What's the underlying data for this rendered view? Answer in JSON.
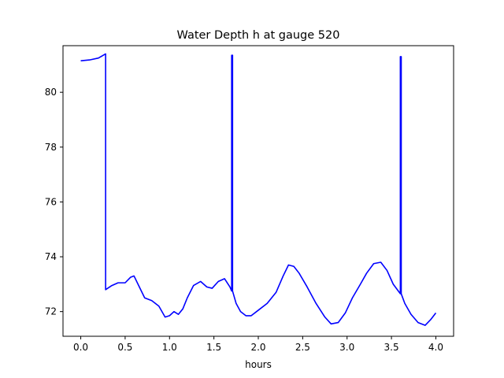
{
  "chart_data": {
    "type": "line",
    "title": "Water Depth h at gauge 520",
    "xlabel": "hours",
    "ylabel": "",
    "xlim": [
      -0.2,
      4.2
    ],
    "ylim": [
      71.1,
      81.7
    ],
    "grid": false,
    "xticks": [
      0.0,
      0.5,
      1.0,
      1.5,
      2.0,
      2.5,
      3.0,
      3.5,
      4.0
    ],
    "xtick_labels": [
      "0.0",
      "0.5",
      "1.0",
      "1.5",
      "2.0",
      "2.5",
      "3.0",
      "3.5",
      "4.0"
    ],
    "yticks": [
      72,
      74,
      76,
      78,
      80
    ],
    "ytick_labels": [
      "72",
      "74",
      "76",
      "78",
      "80"
    ],
    "series": [
      {
        "color": "#0000ff",
        "x": [
          0.0,
          0.1,
          0.2,
          0.28,
          0.28,
          0.35,
          0.42,
          0.5,
          0.56,
          0.6,
          0.66,
          0.72,
          0.8,
          0.88,
          0.95,
          1.0,
          1.05,
          1.1,
          1.15,
          1.2,
          1.27,
          1.35,
          1.42,
          1.48,
          1.55,
          1.62,
          1.68,
          1.7,
          1.7,
          1.71,
          1.71,
          1.75,
          1.8,
          1.86,
          1.92,
          2.0,
          2.1,
          2.2,
          2.28,
          2.34,
          2.4,
          2.46,
          2.55,
          2.65,
          2.75,
          2.82,
          2.9,
          2.98,
          3.06,
          3.15,
          3.22,
          3.3,
          3.38,
          3.45,
          3.52,
          3.6,
          3.6,
          3.61,
          3.61,
          3.65,
          3.72,
          3.8,
          3.88,
          3.94,
          4.0
        ],
        "y": [
          81.15,
          81.18,
          81.25,
          81.4,
          72.8,
          72.95,
          73.05,
          73.05,
          73.25,
          73.3,
          72.9,
          72.5,
          72.4,
          72.2,
          71.8,
          71.85,
          72.0,
          71.9,
          72.1,
          72.5,
          72.95,
          73.1,
          72.9,
          72.85,
          73.1,
          73.2,
          72.9,
          72.75,
          81.35,
          81.35,
          72.75,
          72.3,
          72.0,
          71.85,
          71.85,
          72.05,
          72.3,
          72.7,
          73.3,
          73.7,
          73.65,
          73.4,
          72.9,
          72.3,
          71.8,
          71.55,
          71.6,
          71.95,
          72.5,
          73.0,
          73.4,
          73.75,
          73.8,
          73.5,
          73.0,
          72.65,
          81.3,
          81.3,
          72.65,
          72.3,
          71.9,
          71.6,
          71.5,
          71.7,
          71.95
        ]
      }
    ]
  }
}
